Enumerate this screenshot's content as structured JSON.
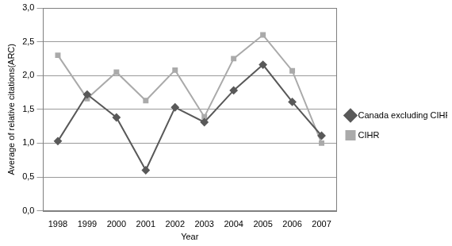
{
  "chart_data": {
    "type": "line",
    "x_label": "Year",
    "y_label": "Average of relative citations(ARC)",
    "categories": [
      "1998",
      "1999",
      "2000",
      "2001",
      "2002",
      "2003",
      "2004",
      "2005",
      "2006",
      "2007"
    ],
    "series": [
      {
        "name": "Canada excluding CIHR",
        "color": "#595959",
        "marker": "diamond",
        "values": [
          1.03,
          1.72,
          1.38,
          0.6,
          1.53,
          1.31,
          1.78,
          2.16,
          1.61,
          1.11
        ]
      },
      {
        "name": "CIHR",
        "color": "#aaaaaa",
        "marker": "square",
        "values": [
          2.3,
          1.66,
          2.05,
          1.63,
          2.08,
          1.39,
          2.25,
          2.6,
          2.07,
          1.0
        ]
      }
    ],
    "ylim": [
      0,
      3
    ],
    "yticks": [
      {
        "value": 0,
        "label": "0,0"
      },
      {
        "value": 0.5,
        "label": "0,5"
      },
      {
        "value": 1,
        "label": "1,0"
      },
      {
        "value": 1.5,
        "label": "1,5"
      },
      {
        "value": 2,
        "label": "2,0"
      },
      {
        "value": 2.5,
        "label": "2,5"
      },
      {
        "value": 3,
        "label": "3,0"
      }
    ],
    "grid": true,
    "legend": "right"
  }
}
